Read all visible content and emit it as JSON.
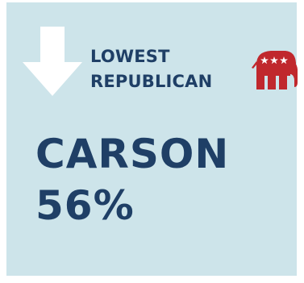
{
  "header": {
    "line1": "LOWEST",
    "line2": "REPUBLICAN"
  },
  "candidate": {
    "name": "CARSON",
    "percent": "56%"
  },
  "icons": {
    "arrow": "down-arrow-icon",
    "party": "republican-elephant-icon"
  },
  "colors": {
    "card_background": "#cde4ea",
    "text": "#1f3f66",
    "arrow": "#ffffff",
    "elephant": "#c0282d"
  }
}
